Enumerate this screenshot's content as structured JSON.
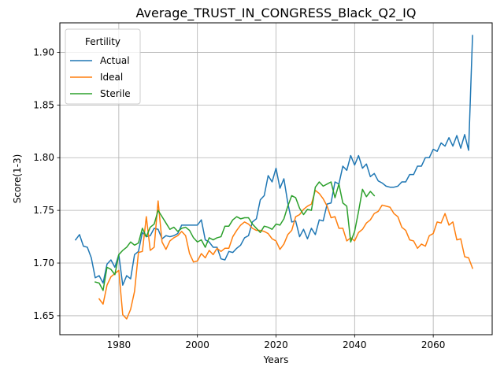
{
  "chart_data": {
    "type": "line",
    "title": "Average_TRUST_IN_CONGRESS_Black_Q2_IQ",
    "xlabel": "Years",
    "ylabel": "Score(1-3)",
    "xlim": [
      1965,
      2075
    ],
    "ylim": [
      1.632,
      1.928
    ],
    "xticks": [
      1980,
      2000,
      2020,
      2040,
      2060
    ],
    "yticks": [
      1.65,
      1.7,
      1.75,
      1.8,
      1.85,
      1.9
    ],
    "grid": true,
    "legend": {
      "title": "Fertility",
      "placement": "upper-left"
    },
    "series": [
      {
        "name": "Actual",
        "color": "#1f77b4",
        "x": [
          1969,
          1970,
          1971,
          1972,
          1973,
          1974,
          1975,
          1976,
          1977,
          1978,
          1979,
          1980,
          1981,
          1982,
          1983,
          1984,
          1985,
          1986,
          1987,
          1988,
          1989,
          1990,
          1991,
          1992,
          1993,
          1994,
          1995,
          1996,
          1997,
          1998,
          1999,
          2000,
          2001,
          2002,
          2003,
          2004,
          2005,
          2006,
          2007,
          2008,
          2009,
          2010,
          2011,
          2012,
          2013,
          2014,
          2015,
          2016,
          2017,
          2018,
          2019,
          2020,
          2021,
          2022,
          2023,
          2024,
          2025,
          2026,
          2027,
          2028,
          2029,
          2030,
          2031,
          2032,
          2033,
          2034,
          2035,
          2036,
          2037,
          2038,
          2039,
          2040,
          2041,
          2042,
          2043,
          2044,
          2045,
          2046,
          2047,
          2048,
          2049,
          2050,
          2051,
          2052,
          2053,
          2054,
          2055,
          2056,
          2057,
          2058,
          2059,
          2060,
          2061,
          2062,
          2063,
          2064,
          2065,
          2066,
          2067,
          2068,
          2069,
          2070
        ],
        "y": [
          1.722,
          1.727,
          1.716,
          1.715,
          1.705,
          1.686,
          1.688,
          1.681,
          1.699,
          1.703,
          1.696,
          1.708,
          1.679,
          1.688,
          1.685,
          1.708,
          1.711,
          1.729,
          1.725,
          1.726,
          1.733,
          1.732,
          1.723,
          1.726,
          1.725,
          1.726,
          1.728,
          1.736,
          1.736,
          1.736,
          1.736,
          1.736,
          1.741,
          1.722,
          1.72,
          1.715,
          1.715,
          1.704,
          1.703,
          1.711,
          1.71,
          1.714,
          1.717,
          1.724,
          1.726,
          1.739,
          1.742,
          1.76,
          1.764,
          1.783,
          1.777,
          1.79,
          1.771,
          1.78,
          1.757,
          1.739,
          1.74,
          1.725,
          1.732,
          1.723,
          1.733,
          1.727,
          1.741,
          1.74,
          1.756,
          1.757,
          1.777,
          1.775,
          1.792,
          1.788,
          1.802,
          1.793,
          1.802,
          1.79,
          1.794,
          1.782,
          1.785,
          1.778,
          1.776,
          1.773,
          1.772,
          1.772,
          1.773,
          1.777,
          1.777,
          1.784,
          1.784,
          1.792,
          1.792,
          1.8,
          1.8,
          1.808,
          1.806,
          1.814,
          1.811,
          1.819,
          1.811,
          1.821,
          1.809,
          1.822,
          1.807,
          1.916
        ]
      },
      {
        "name": "Ideal",
        "color": "#ff7f0e",
        "x": [
          1975,
          1976,
          1977,
          1978,
          1979,
          1980,
          1981,
          1982,
          1983,
          1984,
          1985,
          1986,
          1987,
          1988,
          1989,
          1990,
          1991,
          1992,
          1993,
          1994,
          1995,
          1996,
          1997,
          1998,
          1999,
          2000,
          2001,
          2002,
          2003,
          2004,
          2005,
          2006,
          2007,
          2008,
          2009,
          2010,
          2011,
          2012,
          2013,
          2014,
          2015,
          2016,
          2017,
          2018,
          2019,
          2020,
          2021,
          2022,
          2023,
          2024,
          2025,
          2026,
          2027,
          2028,
          2029,
          2030,
          2031,
          2032,
          2033,
          2034,
          2035,
          2036,
          2037,
          2038,
          2039,
          2040,
          2041,
          2042,
          2043,
          2044,
          2045,
          2046,
          2047,
          2048,
          2049,
          2050,
          2051,
          2052,
          2053,
          2054,
          2055,
          2056,
          2057,
          2058,
          2059,
          2060,
          2061,
          2062,
          2063,
          2064,
          2065,
          2066,
          2067,
          2068,
          2069,
          2070
        ],
        "y": [
          1.666,
          1.661,
          1.679,
          1.687,
          1.69,
          1.693,
          1.651,
          1.647,
          1.656,
          1.673,
          1.71,
          1.711,
          1.744,
          1.712,
          1.715,
          1.759,
          1.72,
          1.713,
          1.721,
          1.724,
          1.726,
          1.73,
          1.726,
          1.709,
          1.701,
          1.702,
          1.709,
          1.705,
          1.712,
          1.708,
          1.714,
          1.711,
          1.714,
          1.714,
          1.725,
          1.731,
          1.736,
          1.739,
          1.737,
          1.733,
          1.731,
          1.731,
          1.73,
          1.728,
          1.723,
          1.721,
          1.713,
          1.718,
          1.727,
          1.731,
          1.744,
          1.746,
          1.751,
          1.754,
          1.756,
          1.769,
          1.766,
          1.761,
          1.754,
          1.743,
          1.744,
          1.733,
          1.733,
          1.721,
          1.724,
          1.721,
          1.729,
          1.732,
          1.738,
          1.741,
          1.747,
          1.749,
          1.755,
          1.754,
          1.753,
          1.747,
          1.744,
          1.734,
          1.731,
          1.722,
          1.721,
          1.714,
          1.718,
          1.716,
          1.726,
          1.728,
          1.739,
          1.738,
          1.747,
          1.736,
          1.739,
          1.722,
          1.723,
          1.706,
          1.705,
          1.695
        ]
      },
      {
        "name": "Sterile",
        "color": "#2ca02c",
        "x": [
          1974,
          1975,
          1976,
          1977,
          1978,
          1979,
          1980,
          1981,
          1982,
          1983,
          1984,
          1985,
          1986,
          1987,
          1988,
          1989,
          1990,
          1991,
          1992,
          1993,
          1994,
          1995,
          1996,
          1997,
          1998,
          1999,
          2000,
          2001,
          2002,
          2003,
          2004,
          2005,
          2006,
          2007,
          2008,
          2009,
          2010,
          2011,
          2012,
          2013,
          2014,
          2015,
          2016,
          2017,
          2018,
          2019,
          2020,
          2021,
          2022,
          2023,
          2024,
          2025,
          2026,
          2027,
          2028,
          2029,
          2030,
          2031,
          2032,
          2033,
          2034,
          2035,
          2036,
          2037,
          2038,
          2039,
          2040,
          2041,
          2042,
          2043,
          2044,
          2045
        ],
        "y": [
          1.682,
          1.681,
          1.674,
          1.696,
          1.694,
          1.689,
          1.708,
          1.712,
          1.715,
          1.72,
          1.717,
          1.719,
          1.733,
          1.725,
          1.734,
          1.737,
          1.75,
          1.744,
          1.738,
          1.732,
          1.734,
          1.73,
          1.733,
          1.734,
          1.731,
          1.724,
          1.72,
          1.722,
          1.715,
          1.724,
          1.722,
          1.724,
          1.725,
          1.735,
          1.735,
          1.741,
          1.744,
          1.742,
          1.743,
          1.743,
          1.737,
          1.733,
          1.729,
          1.735,
          1.734,
          1.732,
          1.737,
          1.736,
          1.742,
          1.754,
          1.764,
          1.762,
          1.752,
          1.746,
          1.751,
          1.75,
          1.772,
          1.777,
          1.773,
          1.775,
          1.777,
          1.762,
          1.775,
          1.757,
          1.754,
          1.72,
          1.73,
          1.749,
          1.77,
          1.763,
          1.768,
          1.764
        ]
      }
    ]
  }
}
